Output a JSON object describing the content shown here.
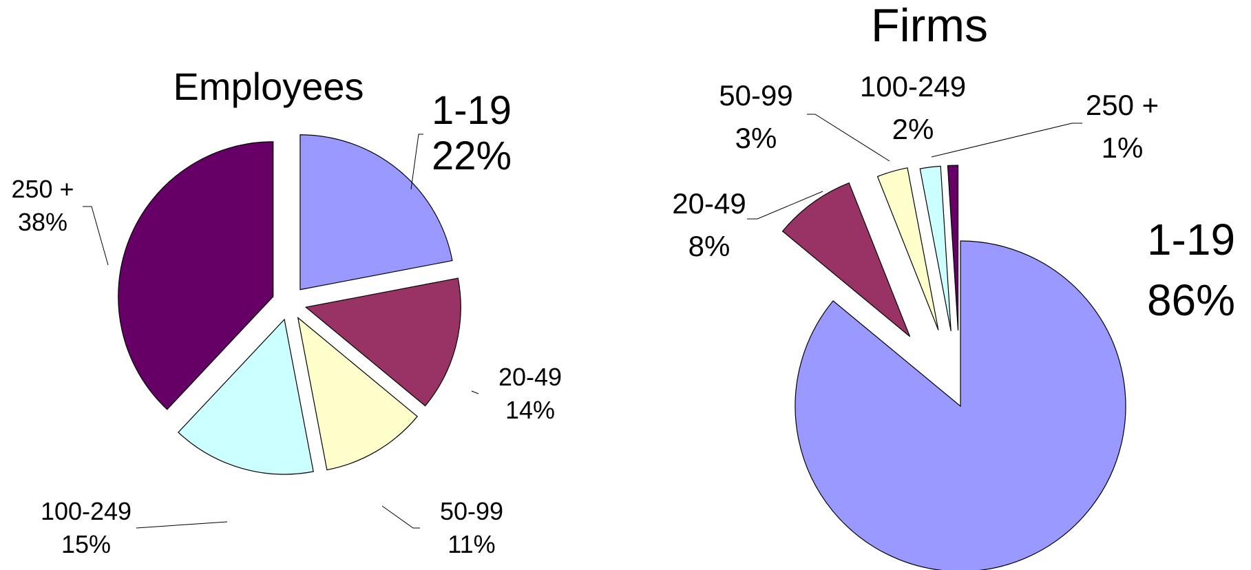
{
  "chart_data": [
    {
      "type": "pie",
      "title": "Employees",
      "series": [
        {
          "categories": [
            "1-19",
            "20-49",
            "50-99",
            "100-249",
            "250 +"
          ],
          "values": [
            22,
            14,
            11,
            15,
            38
          ],
          "value_labels": [
            "22%",
            "14%",
            "11%",
            "15%",
            "38%"
          ],
          "colors": [
            "#9999FF",
            "#993366",
            "#FFFFCC",
            "#CCFFFF",
            "#660066"
          ]
        }
      ],
      "legend": "none",
      "exploded": true
    },
    {
      "type": "pie",
      "title": "Firms",
      "series": [
        {
          "categories": [
            "1-19",
            "20-49",
            "50-99",
            "100-249",
            "250 +"
          ],
          "values": [
            86,
            8,
            3,
            2,
            1
          ],
          "value_labels": [
            "86%",
            "8%",
            "3%",
            "2%",
            "1%"
          ],
          "colors": [
            "#9999FF",
            "#993366",
            "#FFFFCC",
            "#CCFFFF",
            "#660066"
          ]
        }
      ],
      "legend": "none",
      "exploded": true
    }
  ]
}
